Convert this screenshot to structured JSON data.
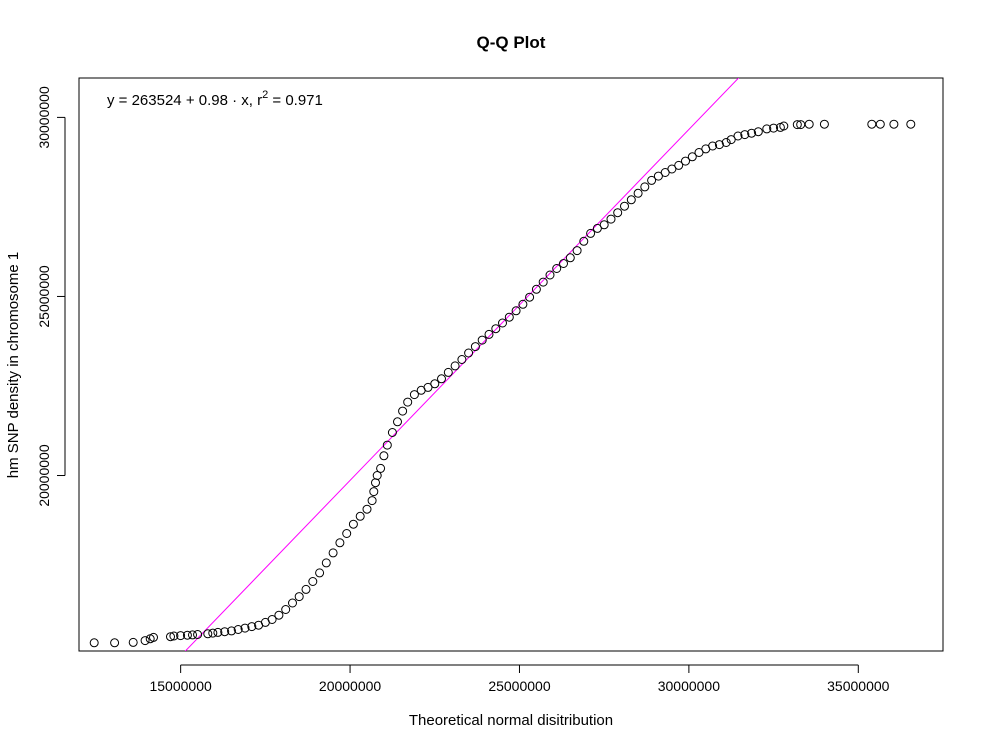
{
  "chart_data": {
    "type": "scatter",
    "title": "Q-Q Plot",
    "xlabel": "Theoretical normal disitribution",
    "ylabel": "hm SNP density in chromosome 1",
    "xlim": [
      12000000,
      37500000
    ],
    "ylim": [
      15100000,
      31100000
    ],
    "x_ticks": [
      15000000,
      20000000,
      25000000,
      30000000,
      35000000
    ],
    "x_tick_labels": [
      "15000000",
      "20000000",
      "25000000",
      "30000000",
      "35000000"
    ],
    "y_ticks": [
      20000000,
      25000000,
      30000000
    ],
    "y_tick_labels": [
      "20000000",
      "25000000",
      "30000000"
    ],
    "grid": false,
    "annotation": {
      "prefix": "y = 263524 + 0.98 · x,  r",
      "superscript": "2",
      "suffix": " = 0.971"
    },
    "fit_line": {
      "intercept": 263524,
      "slope": 0.98,
      "color": "#ff00ff"
    },
    "point_color": "#000000",
    "series": [
      {
        "points": [
          [
            12450000,
            15330000
          ],
          [
            13050000,
            15330000
          ],
          [
            13600000,
            15340000
          ],
          [
            13950000,
            15390000
          ],
          [
            14100000,
            15440000
          ],
          [
            14200000,
            15480000
          ],
          [
            14700000,
            15500000
          ],
          [
            14800000,
            15520000
          ],
          [
            15000000,
            15530000
          ],
          [
            15200000,
            15540000
          ],
          [
            15350000,
            15550000
          ],
          [
            15500000,
            15560000
          ],
          [
            15800000,
            15580000
          ],
          [
            15950000,
            15600000
          ],
          [
            16100000,
            15620000
          ],
          [
            16300000,
            15640000
          ],
          [
            16500000,
            15660000
          ],
          [
            16700000,
            15700000
          ],
          [
            16900000,
            15740000
          ],
          [
            17100000,
            15780000
          ],
          [
            17300000,
            15820000
          ],
          [
            17500000,
            15900000
          ],
          [
            17700000,
            15980000
          ],
          [
            17900000,
            16100000
          ],
          [
            18100000,
            16260000
          ],
          [
            18300000,
            16440000
          ],
          [
            18500000,
            16620000
          ],
          [
            18700000,
            16820000
          ],
          [
            18900000,
            17040000
          ],
          [
            19100000,
            17280000
          ],
          [
            19300000,
            17560000
          ],
          [
            19500000,
            17840000
          ],
          [
            19700000,
            18120000
          ],
          [
            19900000,
            18380000
          ],
          [
            20100000,
            18640000
          ],
          [
            20300000,
            18860000
          ],
          [
            20500000,
            19060000
          ],
          [
            20650000,
            19300000
          ],
          [
            20700000,
            19550000
          ],
          [
            20750000,
            19800000
          ],
          [
            20800000,
            20000000
          ],
          [
            20900000,
            20200000
          ],
          [
            21000000,
            20550000
          ],
          [
            21100000,
            20850000
          ],
          [
            21250000,
            21200000
          ],
          [
            21400000,
            21500000
          ],
          [
            21550000,
            21800000
          ],
          [
            21700000,
            22050000
          ],
          [
            21900000,
            22260000
          ],
          [
            22100000,
            22380000
          ],
          [
            22300000,
            22460000
          ],
          [
            22500000,
            22560000
          ],
          [
            22700000,
            22700000
          ],
          [
            22900000,
            22880000
          ],
          [
            23100000,
            23060000
          ],
          [
            23300000,
            23240000
          ],
          [
            23500000,
            23420000
          ],
          [
            23700000,
            23600000
          ],
          [
            23900000,
            23780000
          ],
          [
            24100000,
            23940000
          ],
          [
            24300000,
            24100000
          ],
          [
            24500000,
            24260000
          ],
          [
            24700000,
            24420000
          ],
          [
            24900000,
            24600000
          ],
          [
            25100000,
            24780000
          ],
          [
            25300000,
            24980000
          ],
          [
            25500000,
            25200000
          ],
          [
            25700000,
            25400000
          ],
          [
            25900000,
            25600000
          ],
          [
            26100000,
            25780000
          ],
          [
            26300000,
            25920000
          ],
          [
            26500000,
            26080000
          ],
          [
            26700000,
            26280000
          ],
          [
            26900000,
            26540000
          ],
          [
            27100000,
            26760000
          ],
          [
            27300000,
            26900000
          ],
          [
            27500000,
            27000000
          ],
          [
            27700000,
            27160000
          ],
          [
            27900000,
            27340000
          ],
          [
            28100000,
            27520000
          ],
          [
            28300000,
            27700000
          ],
          [
            28500000,
            27880000
          ],
          [
            28700000,
            28060000
          ],
          [
            28900000,
            28240000
          ],
          [
            29100000,
            28360000
          ],
          [
            29300000,
            28460000
          ],
          [
            29500000,
            28560000
          ],
          [
            29700000,
            28660000
          ],
          [
            29900000,
            28780000
          ],
          [
            30100000,
            28900000
          ],
          [
            30300000,
            29020000
          ],
          [
            30500000,
            29120000
          ],
          [
            30700000,
            29200000
          ],
          [
            30900000,
            29240000
          ],
          [
            31100000,
            29300000
          ],
          [
            31250000,
            29380000
          ],
          [
            31450000,
            29480000
          ],
          [
            31650000,
            29520000
          ],
          [
            31850000,
            29560000
          ],
          [
            32050000,
            29600000
          ],
          [
            32300000,
            29680000
          ],
          [
            32500000,
            29700000
          ],
          [
            32700000,
            29720000
          ],
          [
            32800000,
            29760000
          ],
          [
            33200000,
            29800000
          ],
          [
            33300000,
            29800000
          ],
          [
            33550000,
            29810000
          ],
          [
            34000000,
            29810000
          ],
          [
            35400000,
            29810000
          ],
          [
            35650000,
            29810000
          ],
          [
            36050000,
            29810000
          ],
          [
            36550000,
            29810000
          ]
        ]
      }
    ]
  }
}
